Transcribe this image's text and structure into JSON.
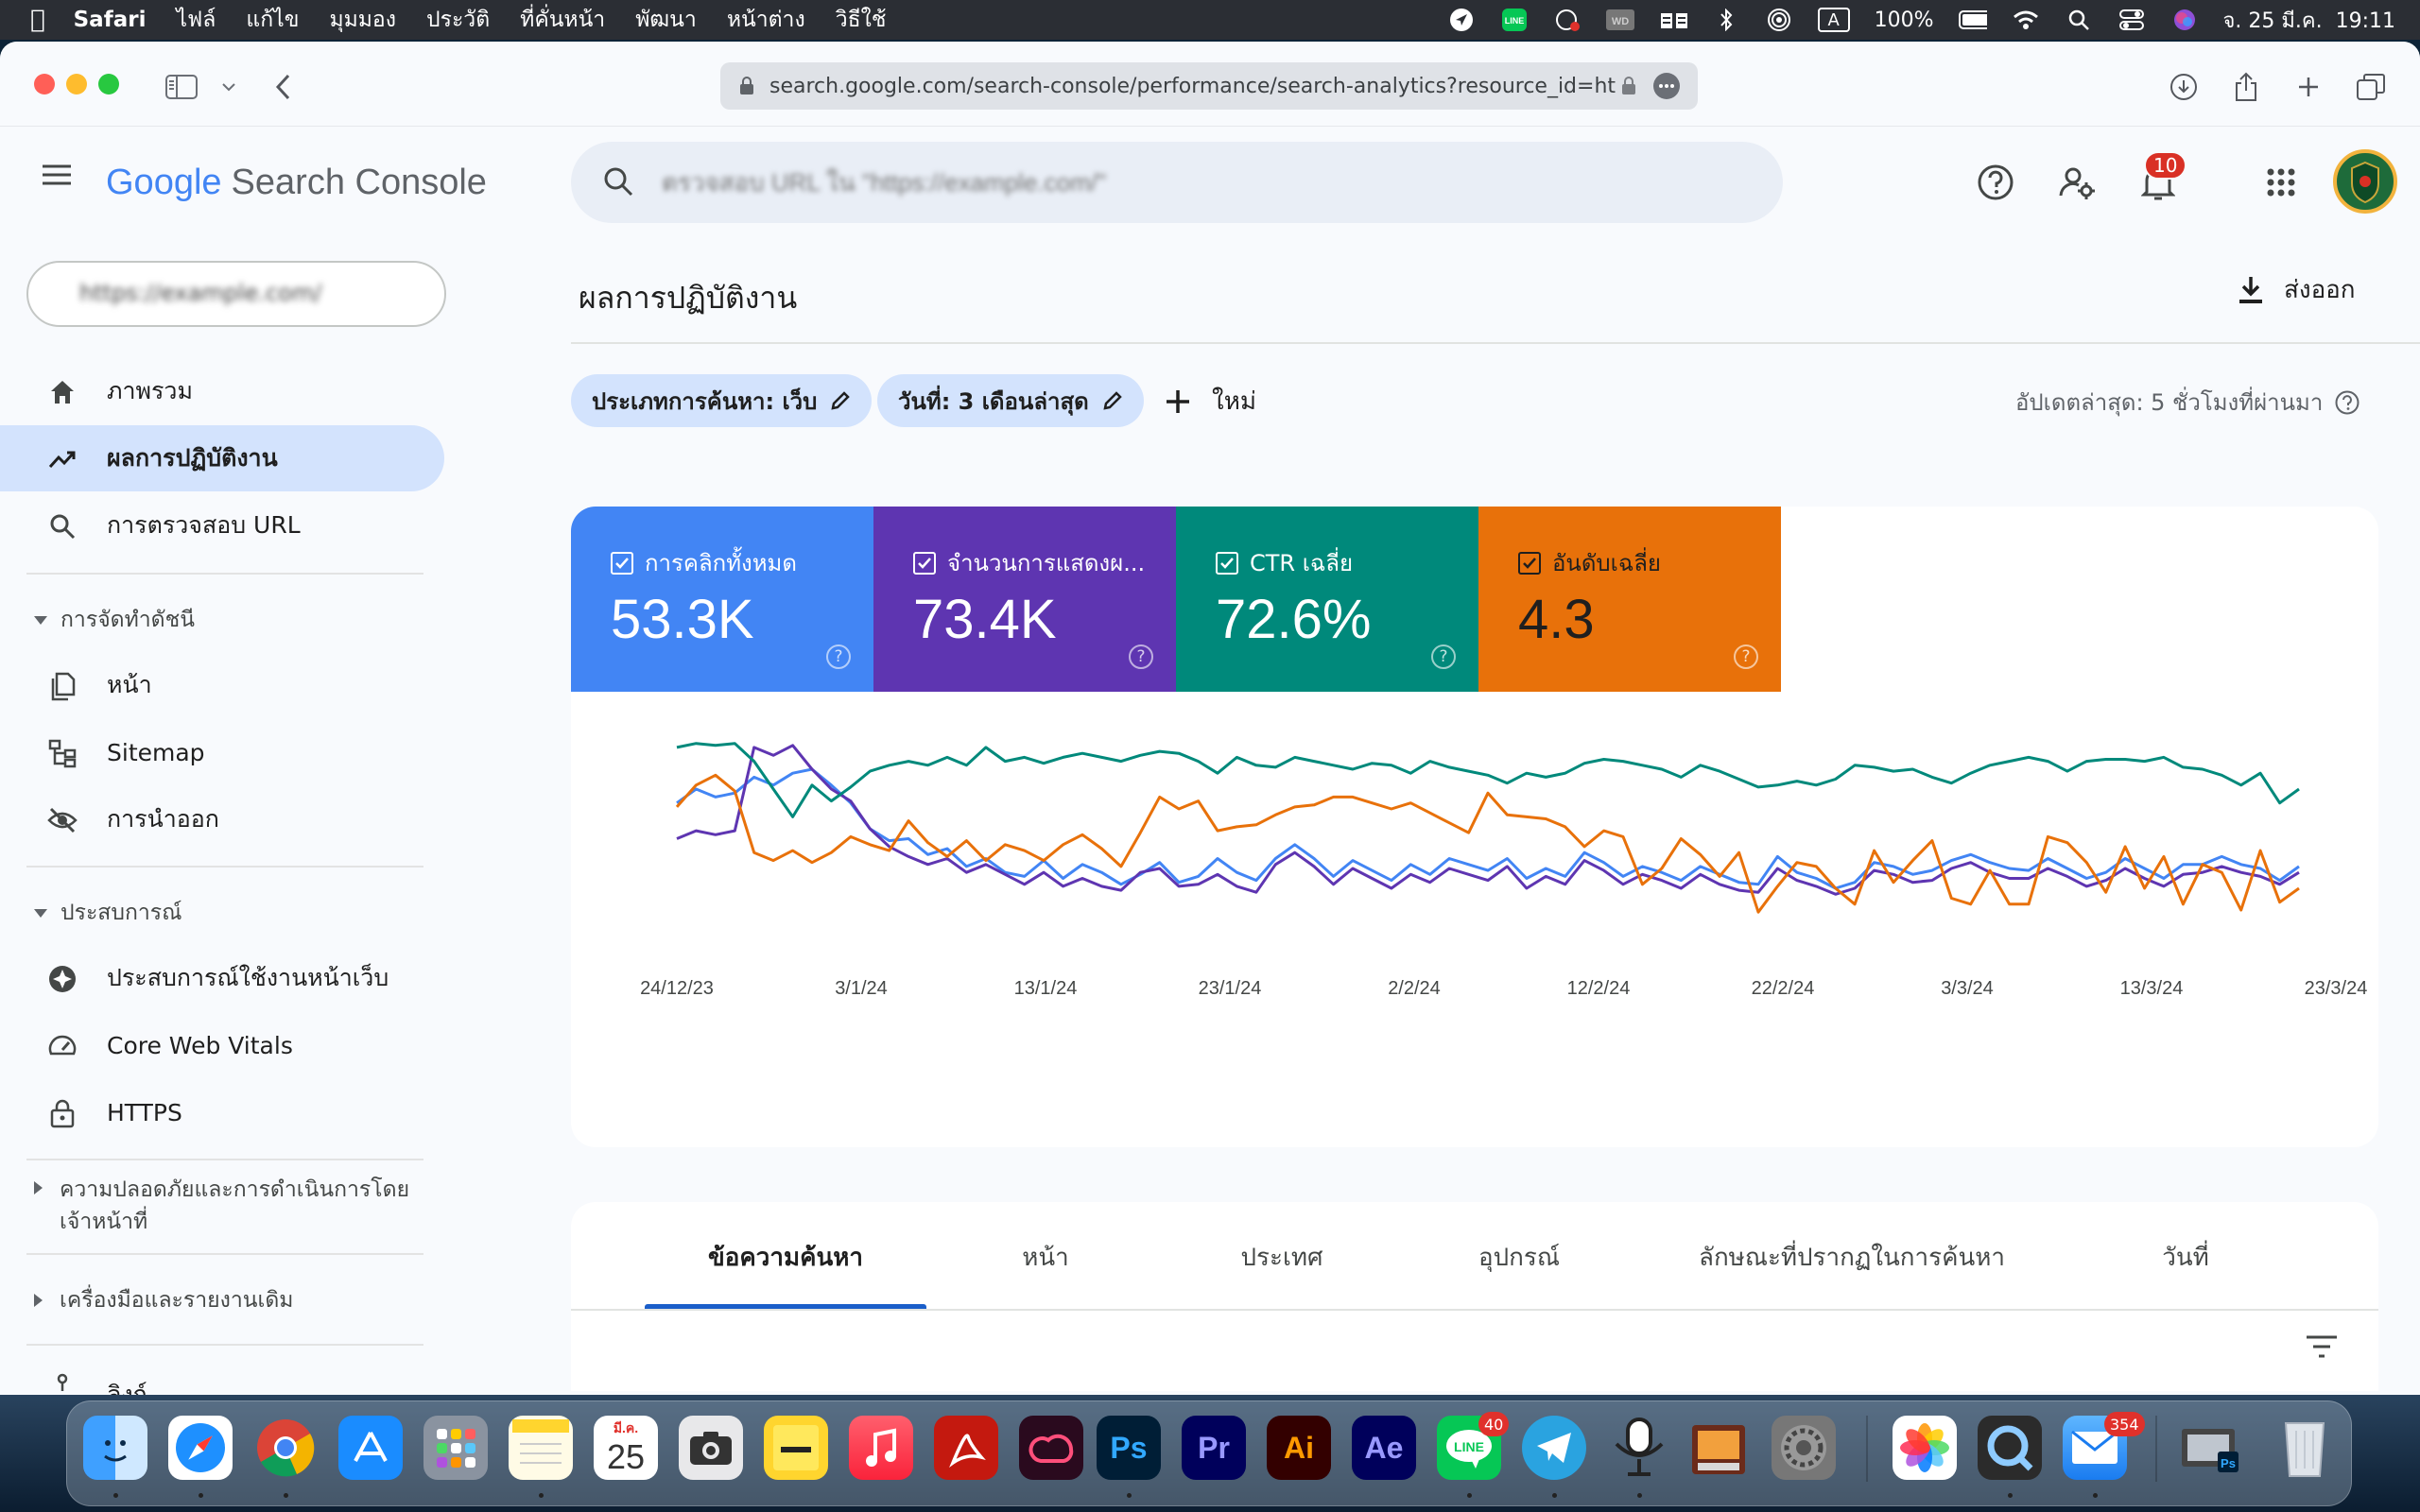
{
  "menubar": {
    "app": "Safari",
    "items": [
      "ไฟล์",
      "แก้ไข",
      "มุมมอง",
      "ประวัติ",
      "ที่คั่นหน้า",
      "พัฒนา",
      "หน้าต่าง",
      "วิธีใช้"
    ],
    "battery": "100%",
    "datetime": "จ. 25 มี.ค.  19:11",
    "input_source": "A"
  },
  "browser": {
    "url": "search.google.com/search-console/performance/search-analytics?resource_id=ht"
  },
  "header": {
    "logo_text": "Google",
    "product": "Search Console",
    "search_placeholder": "ตรวจสอบ URL ใน \"https://example.com/\"",
    "notification_count": "10"
  },
  "sidebar": {
    "property": "https://example.com/",
    "items": [
      {
        "label": "ภาพรวม",
        "icon": "home-icon"
      },
      {
        "label": "ผลการปฏิบัติงาน",
        "icon": "trending-up-icon",
        "active": true
      },
      {
        "label": "การตรวจสอบ URL",
        "icon": "search-icon"
      }
    ],
    "section_index": "การจัดทำดัชนี",
    "index_items": [
      {
        "label": "หน้า",
        "icon": "pages-icon"
      },
      {
        "label": "Sitemap",
        "icon": "sitemap-icon"
      },
      {
        "label": "การนำออก",
        "icon": "eye-off-icon"
      }
    ],
    "section_experience": "ประสบการณ์",
    "experience_items": [
      {
        "label": "ประสบการณ์ใช้งานหน้าเว็บ",
        "icon": "page-experience-icon"
      },
      {
        "label": "Core Web Vitals",
        "icon": "gauge-icon"
      },
      {
        "label": "HTTPS",
        "icon": "lock-icon"
      }
    ],
    "section_security_line1": "ความปลอดภัยและการดำเนินการโดย",
    "section_security_line2": "เจ้าหน้าที่",
    "section_legacy": "เครื่องมือและรายงานเดิม",
    "cut_item": "ลิงก์"
  },
  "main": {
    "title": "ผลการปฏิบัติงาน",
    "export_label": "ส่งออก",
    "filters": [
      {
        "label": "ประเภทการค้นหา: เว็บ"
      },
      {
        "label": "วันที่: 3 เดือนล่าสุด"
      }
    ],
    "new_label": "ใหม่",
    "last_updated": "อัปเดตล่าสุด: 5 ชั่วโมงที่ผ่านมา",
    "metrics": [
      {
        "label": "การคลิกทั้งหมด",
        "value": "53.3K",
        "color": "#4285f4"
      },
      {
        "label": "จำนวนการแสดงผ...",
        "value": "73.4K",
        "color": "#5e35b1"
      },
      {
        "label": "CTR เฉลี่ย",
        "value": "72.6%",
        "color": "#00897b"
      },
      {
        "label": "อันดับเฉลี่ย",
        "value": "4.3",
        "color": "#e8710a"
      }
    ],
    "tabs": [
      "ข้อความค้นหา",
      "หน้า",
      "ประเทศ",
      "อุปกรณ์",
      "ลักษณะที่ปรากฏในการค้นหา",
      "วันที่"
    ],
    "active_tab": "ข้อความค้นหา"
  },
  "chart_data": {
    "type": "line",
    "x_ticks": [
      "24/12/23",
      "3/1/24",
      "13/1/24",
      "23/1/24",
      "2/2/24",
      "12/2/24",
      "22/2/24",
      "3/3/24",
      "13/3/24",
      "23/3/24"
    ],
    "x_start": "24/12/23",
    "x_end": "23/3/24",
    "y_normalized": true,
    "ylim": [
      0,
      1
    ],
    "series": [
      {
        "name": "การคลิกทั้งหมด",
        "color": "#4285f4",
        "values": [
          0.63,
          0.7,
          0.66,
          0.68,
          0.76,
          0.72,
          0.78,
          0.8,
          0.72,
          0.63,
          0.5,
          0.44,
          0.45,
          0.37,
          0.4,
          0.31,
          0.35,
          0.28,
          0.26,
          0.34,
          0.25,
          0.32,
          0.28,
          0.22,
          0.27,
          0.33,
          0.23,
          0.26,
          0.35,
          0.28,
          0.24,
          0.35,
          0.42,
          0.35,
          0.26,
          0.34,
          0.29,
          0.24,
          0.32,
          0.27,
          0.35,
          0.32,
          0.29,
          0.35,
          0.25,
          0.3,
          0.26,
          0.38,
          0.33,
          0.26,
          0.31,
          0.28,
          0.24,
          0.31,
          0.27,
          0.23,
          0.22,
          0.36,
          0.28,
          0.25,
          0.2,
          0.23,
          0.33,
          0.31,
          0.27,
          0.29,
          0.34,
          0.37,
          0.33,
          0.3,
          0.29,
          0.35,
          0.3,
          0.25,
          0.28,
          0.35,
          0.3,
          0.25,
          0.32,
          0.32,
          0.36,
          0.32,
          0.3,
          0.24,
          0.31
        ]
      },
      {
        "name": "จำนวนการแสดงผล",
        "color": "#5e35b1",
        "values": [
          0.45,
          0.49,
          0.47,
          0.49,
          0.91,
          0.87,
          0.92,
          0.8,
          0.7,
          0.64,
          0.5,
          0.41,
          0.36,
          0.32,
          0.35,
          0.28,
          0.32,
          0.27,
          0.22,
          0.28,
          0.21,
          0.25,
          0.21,
          0.19,
          0.28,
          0.3,
          0.21,
          0.22,
          0.27,
          0.21,
          0.18,
          0.32,
          0.38,
          0.31,
          0.22,
          0.3,
          0.25,
          0.2,
          0.27,
          0.23,
          0.3,
          0.27,
          0.24,
          0.31,
          0.2,
          0.26,
          0.22,
          0.34,
          0.29,
          0.22,
          0.27,
          0.24,
          0.2,
          0.27,
          0.22,
          0.19,
          0.18,
          0.3,
          0.24,
          0.21,
          0.17,
          0.2,
          0.29,
          0.27,
          0.23,
          0.24,
          0.3,
          0.33,
          0.28,
          0.25,
          0.25,
          0.3,
          0.26,
          0.21,
          0.24,
          0.3,
          0.25,
          0.21,
          0.27,
          0.28,
          0.31,
          0.28,
          0.26,
          0.22,
          0.28
        ]
      },
      {
        "name": "CTR เฉลี่ย",
        "color": "#00897b",
        "values": [
          0.91,
          0.93,
          0.92,
          0.93,
          0.84,
          0.7,
          0.56,
          0.72,
          0.64,
          0.71,
          0.79,
          0.82,
          0.84,
          0.82,
          0.86,
          0.82,
          0.91,
          0.84,
          0.86,
          0.83,
          0.86,
          0.88,
          0.86,
          0.84,
          0.87,
          0.89,
          0.88,
          0.84,
          0.78,
          0.86,
          0.82,
          0.81,
          0.86,
          0.84,
          0.82,
          0.8,
          0.83,
          0.82,
          0.78,
          0.84,
          0.81,
          0.79,
          0.77,
          0.73,
          0.78,
          0.76,
          0.78,
          0.83,
          0.85,
          0.84,
          0.82,
          0.8,
          0.76,
          0.82,
          0.79,
          0.75,
          0.71,
          0.72,
          0.74,
          0.72,
          0.75,
          0.82,
          0.81,
          0.79,
          0.8,
          0.76,
          0.73,
          0.78,
          0.82,
          0.84,
          0.86,
          0.84,
          0.79,
          0.84,
          0.85,
          0.85,
          0.84,
          0.86,
          0.81,
          0.8,
          0.77,
          0.72,
          0.78,
          0.63,
          0.7
        ]
      },
      {
        "name": "อันดับเฉลี่ย",
        "color": "#e8710a",
        "values": [
          0.61,
          0.72,
          0.77,
          0.69,
          0.38,
          0.34,
          0.39,
          0.33,
          0.38,
          0.46,
          0.42,
          0.39,
          0.54,
          0.43,
          0.36,
          0.44,
          0.34,
          0.42,
          0.39,
          0.34,
          0.42,
          0.47,
          0.4,
          0.31,
          0.48,
          0.66,
          0.6,
          0.64,
          0.49,
          0.51,
          0.52,
          0.57,
          0.61,
          0.62,
          0.66,
          0.66,
          0.63,
          0.6,
          0.63,
          0.58,
          0.53,
          0.48,
          0.68,
          0.57,
          0.56,
          0.55,
          0.51,
          0.41,
          0.49,
          0.46,
          0.22,
          0.3,
          0.45,
          0.37,
          0.26,
          0.38,
          0.08,
          0.21,
          0.33,
          0.31,
          0.2,
          0.12,
          0.39,
          0.23,
          0.34,
          0.44,
          0.15,
          0.12,
          0.29,
          0.12,
          0.12,
          0.46,
          0.43,
          0.33,
          0.18,
          0.41,
          0.2,
          0.36,
          0.12,
          0.32,
          0.28,
          0.09,
          0.39,
          0.13,
          0.2
        ]
      }
    ]
  },
  "dock": {
    "calendar_month": "มี.ค.",
    "calendar_day": "25",
    "badges": {
      "line": "40",
      "mail": "354"
    }
  }
}
